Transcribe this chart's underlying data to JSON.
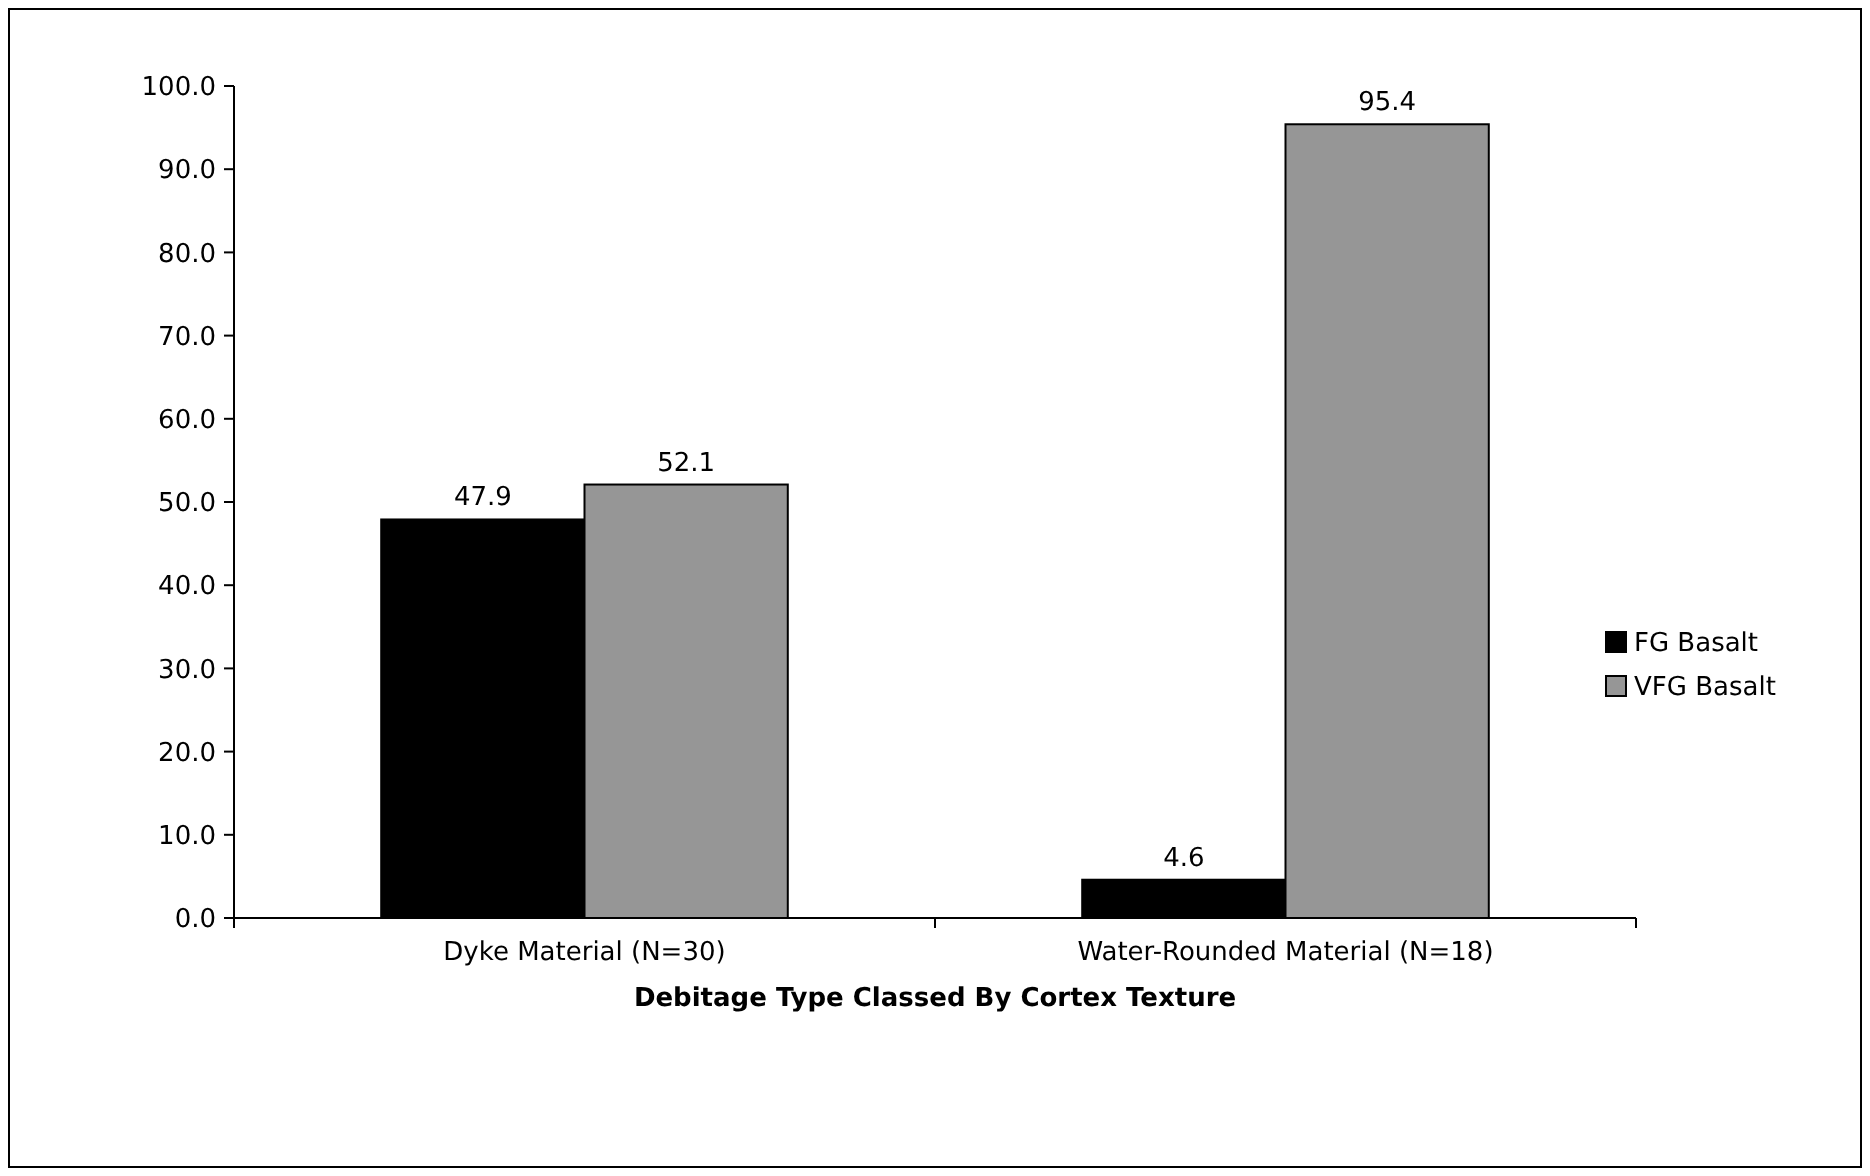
{
  "chart_data": {
    "type": "bar",
    "xlabel": "Debitage Type Classed By Cortex Texture",
    "categories": [
      "Dyke Material (N=30)",
      "Water-Rounded Material (N=18)"
    ],
    "series": [
      {
        "name": "FG Basalt",
        "color": "#000000",
        "values": [
          47.9,
          4.6
        ]
      },
      {
        "name": "VFG Basalt",
        "color": "#969696",
        "values": [
          52.1,
          95.4
        ]
      }
    ],
    "ylim": [
      0,
      100
    ],
    "yticks": [
      {
        "value": 0,
        "label": "0.0"
      },
      {
        "value": 10,
        "label": "10.0"
      },
      {
        "value": 20,
        "label": "20.0"
      },
      {
        "value": 30,
        "label": "30.0"
      },
      {
        "value": 40,
        "label": "40.0"
      },
      {
        "value": 50,
        "label": "50.0"
      },
      {
        "value": 60,
        "label": "60.0"
      },
      {
        "value": 70,
        "label": "70.0"
      },
      {
        "value": 80,
        "label": "80.0"
      },
      {
        "value": 90,
        "label": "90.0"
      },
      {
        "value": 100,
        "label": "100.0"
      }
    ],
    "data_labels": true,
    "legend": "right",
    "grid": false
  }
}
